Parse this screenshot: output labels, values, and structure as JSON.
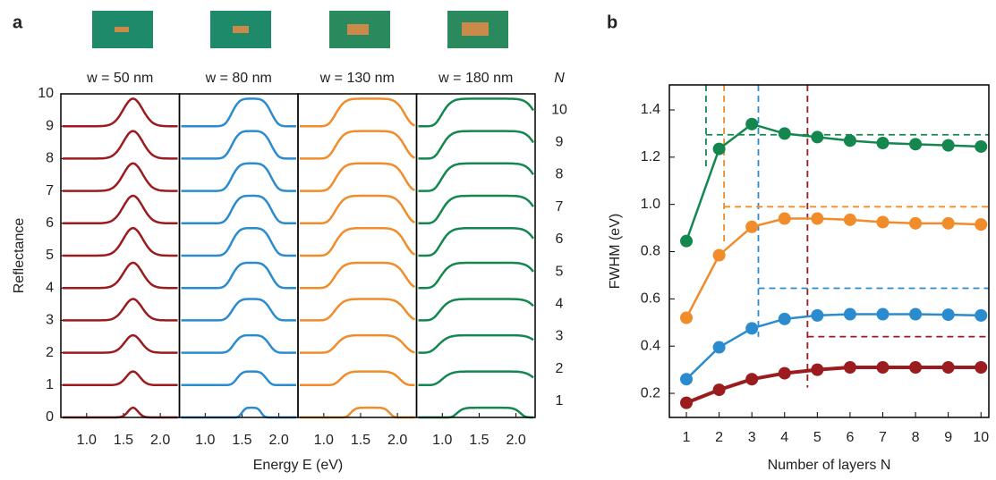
{
  "chart_data": [
    {
      "type": "spectra",
      "panel_label": "a",
      "ylabel": "Reflectance",
      "xlabel": "Energy E (eV)",
      "xlim": [
        0.65,
        2.26
      ],
      "xticks": [
        {
          "value": 1,
          "label": "1.0"
        },
        1.5,
        {
          "value": 2,
          "label": "2.0"
        }
      ],
      "ylim": [
        0,
        10
      ],
      "yticks": [
        0,
        1,
        2,
        3,
        4,
        5,
        6,
        7,
        8,
        9,
        10
      ],
      "n_title": "N",
      "n_labels": [
        1,
        2,
        3,
        4,
        5,
        6,
        7,
        8,
        9,
        10
      ],
      "panels": [
        {
          "title": "w = 50 nm",
          "color": "#9b1b1e"
        },
        {
          "title": "w = 80 nm",
          "color": "#2a8ccf"
        },
        {
          "title": "w = 130 nm",
          "color": "#f08c2a"
        },
        {
          "title": "w = 180 nm",
          "color": "#14874e"
        }
      ]
    },
    {
      "type": "line",
      "panel_label": "b",
      "xlabel": "Number of layers N",
      "ylabel": "FWHM (eV)",
      "x": [
        1,
        2,
        3,
        4,
        5,
        6,
        7,
        8,
        9,
        10
      ],
      "xlim": [
        0.48,
        10.24
      ],
      "xticks": [
        1,
        2,
        3,
        4,
        5,
        6,
        7,
        8,
        9,
        10
      ],
      "ylim": [
        0.098,
        1.506
      ],
      "yticks": [
        0.2,
        0.4,
        0.6,
        0.8,
        {
          "value": 1,
          "label": "1.0"
        },
        1.2,
        1.4
      ],
      "series": [
        {
          "color": "#9b1b1e",
          "values": [
            0.16,
            0.215,
            0.26,
            0.285,
            0.3,
            0.31,
            0.31,
            0.31,
            0.31,
            0.31
          ],
          "threshold": {
            "x": 4.7,
            "y": 0.44
          }
        },
        {
          "color": "#2a8ccf",
          "values": [
            0.26,
            0.395,
            0.475,
            0.515,
            0.53,
            0.535,
            0.535,
            0.535,
            0.533,
            0.53
          ],
          "threshold": {
            "x": 3.2,
            "y": 0.645
          }
        },
        {
          "color": "#f08c2a",
          "values": [
            0.52,
            0.785,
            0.905,
            0.94,
            0.94,
            0.935,
            0.925,
            0.92,
            0.92,
            0.915
          ],
          "threshold": {
            "x": 2.15,
            "y": 0.99
          }
        },
        {
          "color": "#14874e",
          "values": [
            0.845,
            1.235,
            1.34,
            1.3,
            1.285,
            1.27,
            1.26,
            1.255,
            1.25,
            1.245
          ],
          "threshold": {
            "x": 1.6,
            "y": 1.295
          }
        }
      ]
    }
  ]
}
